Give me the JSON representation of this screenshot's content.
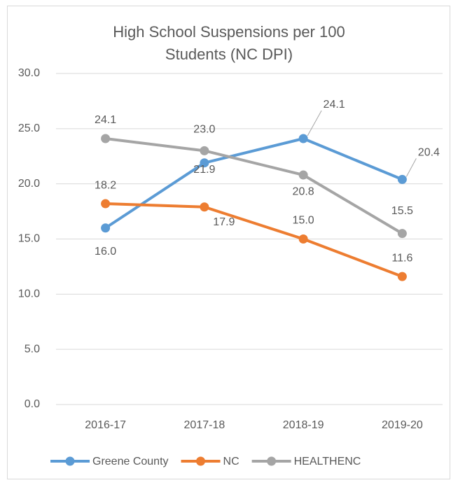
{
  "chart_data": {
    "type": "line",
    "title": "High School Suspensions per 100 Students (NC DPI)",
    "categories": [
      "2016-17",
      "2017-18",
      "2018-19",
      "2019-20"
    ],
    "series": [
      {
        "name": "Greene County",
        "color": "#5b9bd5",
        "values": [
          16.0,
          21.9,
          24.1,
          20.4
        ],
        "value_labels": [
          "16.0",
          "21.9",
          "24.1",
          "20.4"
        ]
      },
      {
        "name": "NC",
        "color": "#ed7d31",
        "values": [
          18.2,
          17.9,
          15.0,
          11.6
        ],
        "value_labels": [
          "18.2",
          "17.9",
          "15.0",
          "11.6"
        ]
      },
      {
        "name": "HEALTHENC",
        "color": "#a5a5a5",
        "values": [
          24.1,
          23.0,
          20.8,
          15.5
        ],
        "value_labels": [
          "24.1",
          "23.0",
          "20.8",
          "15.5"
        ]
      }
    ],
    "ylim": [
      0,
      30
    ],
    "yticks": [
      {
        "value": 0,
        "label": "0.0"
      },
      {
        "value": 5,
        "label": "5.0"
      },
      {
        "value": 10,
        "label": "10.0"
      },
      {
        "value": 15,
        "label": "15.0"
      },
      {
        "value": 20,
        "label": "20.0"
      },
      {
        "value": 25,
        "label": "25.0"
      },
      {
        "value": 30,
        "label": "30.0"
      }
    ],
    "grid": true,
    "legend": "bottom"
  }
}
